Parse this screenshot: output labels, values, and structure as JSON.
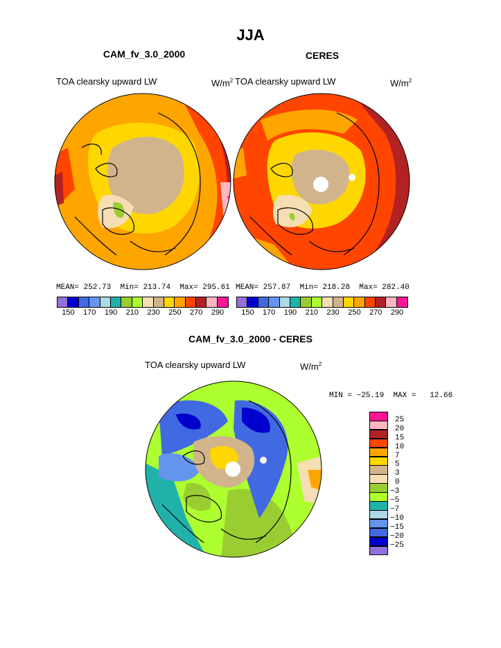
{
  "page": {
    "season_title": "JJA"
  },
  "panels": [
    {
      "title": "CAM_fv_3.0_2000",
      "variable": "TOA clearsky upward LW",
      "units": "W/m",
      "units_sup": "2",
      "stats": {
        "mean_label": "MEAN=",
        "mean": "252.73",
        "min_label": "Min=",
        "min": "213.74",
        "max_label": "Max=",
        "max": "295.61"
      }
    },
    {
      "title": "CERES",
      "variable": "TOA clearsky upward LW",
      "units": "W/m",
      "units_sup": "2",
      "stats": {
        "mean_label": "MEAN=",
        "mean": "257.87",
        "min_label": "Min=",
        "min": "218.28",
        "max_label": "Max=",
        "max": "282.40"
      }
    }
  ],
  "diff_panel": {
    "title": "CAM_fv_3.0_2000 - CERES",
    "variable": "TOA clearsky upward LW",
    "units": "W/m",
    "units_sup": "2",
    "minmax": "MIN = −25.19  MAX =   12.66"
  },
  "colorbar_abs": {
    "colors": [
      "#9370db",
      "#0000cd",
      "#4169e1",
      "#6495ed",
      "#add8e6",
      "#20b2aa",
      "#9acd32",
      "#adff2f",
      "#f5deb3",
      "#d2b48c",
      "#ffd700",
      "#ffa500",
      "#ff4500",
      "#b22222",
      "#ffb6c1",
      "#ff1493"
    ],
    "tick_labels": [
      "150",
      "170",
      "190",
      "210",
      "230",
      "250",
      "270",
      "290"
    ]
  },
  "colorbar_diff": {
    "colors": [
      "#ff1493",
      "#ffb6c1",
      "#b22222",
      "#ff4500",
      "#ffa500",
      "#ffd700",
      "#d2b48c",
      "#f5deb3",
      "#9acd32",
      "#adff2f",
      "#20b2aa",
      "#add8e6",
      "#6495ed",
      "#4169e1",
      "#0000cd",
      "#9370db"
    ],
    "labels": [
      "25",
      "20",
      "15",
      "10",
      "7",
      "5",
      "3",
      "0",
      "−3",
      "−5",
      "−7",
      "−10",
      "−15",
      "−20",
      "−25"
    ]
  },
  "chart_data": [
    {
      "type": "heatmap",
      "title": "CAM_fv_3.0_2000",
      "projection": "north polar stereographic",
      "variable": "TOA clearsky upward LW",
      "units": "W/m2",
      "mean": 252.73,
      "min": 213.74,
      "max": 295.61,
      "contour_levels": [
        150,
        160,
        170,
        180,
        190,
        200,
        210,
        220,
        230,
        240,
        250,
        260,
        270,
        280,
        290
      ]
    },
    {
      "type": "heatmap",
      "title": "CERES",
      "projection": "north polar stereographic",
      "variable": "TOA clearsky upward LW",
      "units": "W/m2",
      "mean": 257.87,
      "min": 218.28,
      "max": 282.4,
      "contour_levels": [
        150,
        160,
        170,
        180,
        190,
        200,
        210,
        220,
        230,
        240,
        250,
        260,
        270,
        280,
        290
      ]
    },
    {
      "type": "heatmap",
      "title": "CAM_fv_3.0_2000 - CERES",
      "projection": "north polar stereographic",
      "variable": "TOA clearsky upward LW",
      "units": "W/m2",
      "min": -25.19,
      "max": 12.66,
      "contour_levels": [
        -25,
        -20,
        -15,
        -10,
        -7,
        -5,
        -3,
        0,
        3,
        5,
        7,
        10,
        15,
        20,
        25
      ]
    }
  ]
}
